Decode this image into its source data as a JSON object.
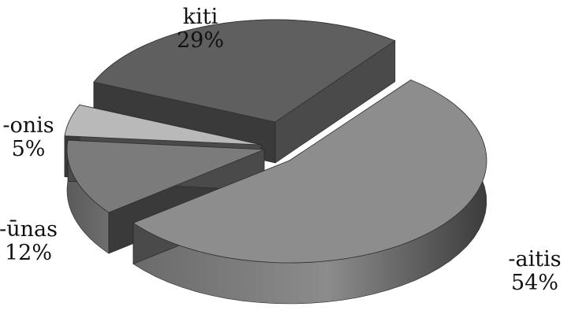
{
  "chart_data": {
    "type": "pie",
    "style": "3d-exploded",
    "title": "",
    "slices": [
      {
        "name": "-aitis",
        "label": "-aitis",
        "value": 54,
        "value_label": "54%",
        "color": "#8a8a8a"
      },
      {
        "name": "-ūnas",
        "label": "-ūnas",
        "value": 12,
        "value_label": "12%",
        "color": "#7c7c7c"
      },
      {
        "name": "-onis",
        "label": "-onis",
        "value": 5,
        "value_label": "5%",
        "color": "#b8b8b8"
      },
      {
        "name": "kiti",
        "label": "kiti",
        "value": 29,
        "value_label": "29%",
        "color": "#626262"
      }
    ]
  }
}
